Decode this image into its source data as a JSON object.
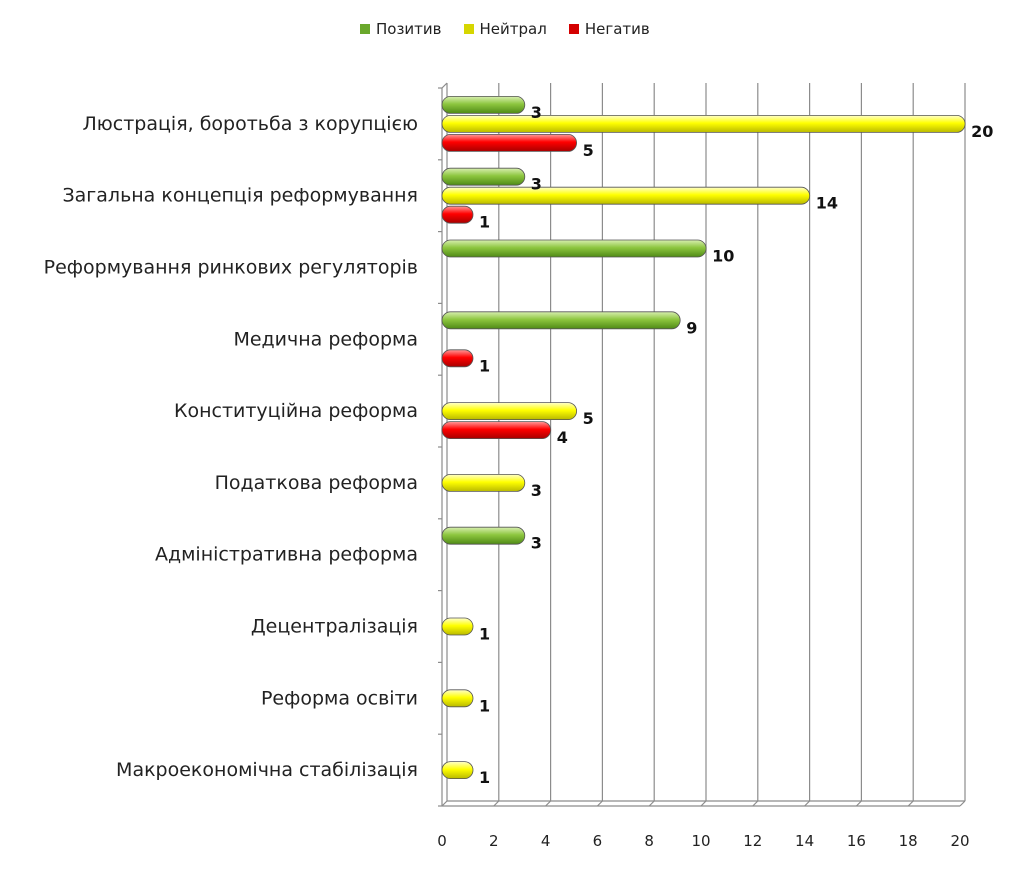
{
  "chart_data": {
    "type": "bar",
    "orientation": "horizontal",
    "categories": [
      "Люстрація, боротьба з корупцією",
      "Загальна концепція реформування",
      "Реформування ринкових регуляторів",
      "Медична реформа",
      "Конституційна реформа",
      "Податкова реформа",
      "Адміністративна реформа",
      "Децентралізація",
      "Реформа освіти",
      "Макроекономічна стабілізація"
    ],
    "series": [
      {
        "name": "Позитив",
        "color": "#8dc63f",
        "values": [
          3,
          3,
          10,
          9,
          null,
          null,
          3,
          null,
          null,
          null
        ]
      },
      {
        "name": "Нейтрал",
        "color": "#ffff00",
        "values": [
          20,
          14,
          null,
          null,
          5,
          3,
          null,
          1,
          1,
          1
        ]
      },
      {
        "name": "Негатив",
        "color": "#ff0000",
        "values": [
          5,
          1,
          null,
          1,
          4,
          null,
          null,
          null,
          null,
          null
        ]
      }
    ],
    "xlim": [
      0,
      20
    ],
    "xticks": [
      0,
      2,
      4,
      6,
      8,
      10,
      12,
      14,
      16,
      18,
      20
    ],
    "grid": true,
    "legend_position": "top"
  }
}
